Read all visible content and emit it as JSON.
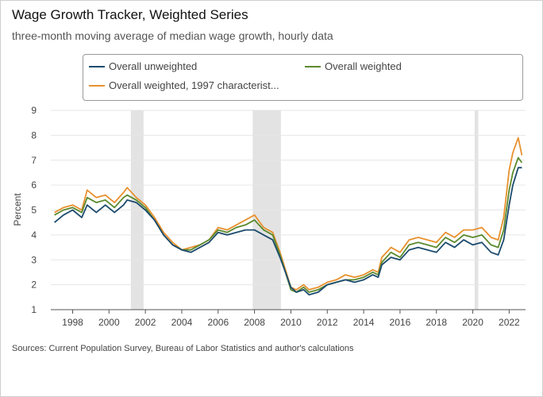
{
  "chart_data": {
    "type": "line",
    "title": "Wage Growth Tracker, Weighted Series",
    "subtitle": "three-month moving average of median wage growth, hourly data",
    "xlabel": "",
    "ylabel": "Percent",
    "xlim": [
      1996.8,
      2022.9
    ],
    "ylim": [
      1,
      9
    ],
    "y_ticks": [
      "1",
      "2",
      "3",
      "4",
      "5",
      "6",
      "7",
      "8",
      "9"
    ],
    "x_ticks": [
      "1998",
      "2000",
      "2002",
      "2004",
      "2006",
      "2008",
      "2010",
      "2012",
      "2014",
      "2016",
      "2018",
      "2020",
      "2022"
    ],
    "recessions": [
      [
        2001.2,
        2001.9
      ],
      [
        2007.9,
        2009.45
      ],
      [
        2020.1,
        2020.3
      ]
    ],
    "series": [
      {
        "name": "Overall unweighted",
        "color": "#1c4b6e",
        "points": [
          [
            1997.0,
            4.5
          ],
          [
            1997.5,
            4.8
          ],
          [
            1998.0,
            5.0
          ],
          [
            1998.5,
            4.7
          ],
          [
            1998.8,
            5.2
          ],
          [
            1999.3,
            4.9
          ],
          [
            1999.8,
            5.2
          ],
          [
            2000.3,
            4.9
          ],
          [
            2000.8,
            5.2
          ],
          [
            2001.0,
            5.4
          ],
          [
            2001.5,
            5.3
          ],
          [
            2002.0,
            5.0
          ],
          [
            2002.5,
            4.6
          ],
          [
            2003.0,
            4.0
          ],
          [
            2003.5,
            3.6
          ],
          [
            2004.0,
            3.4
          ],
          [
            2004.5,
            3.3
          ],
          [
            2005.0,
            3.5
          ],
          [
            2005.5,
            3.7
          ],
          [
            2006.0,
            4.1
          ],
          [
            2006.5,
            4.0
          ],
          [
            2007.0,
            4.1
          ],
          [
            2007.5,
            4.2
          ],
          [
            2008.0,
            4.2
          ],
          [
            2008.5,
            4.0
          ],
          [
            2009.0,
            3.8
          ],
          [
            2009.4,
            3.1
          ],
          [
            2009.7,
            2.5
          ],
          [
            2010.0,
            1.9
          ],
          [
            2010.3,
            1.7
          ],
          [
            2010.7,
            1.8
          ],
          [
            2011.0,
            1.6
          ],
          [
            2011.5,
            1.7
          ],
          [
            2012.0,
            2.0
          ],
          [
            2012.5,
            2.1
          ],
          [
            2013.0,
            2.2
          ],
          [
            2013.5,
            2.1
          ],
          [
            2014.0,
            2.2
          ],
          [
            2014.5,
            2.4
          ],
          [
            2014.8,
            2.3
          ],
          [
            2015.0,
            2.8
          ],
          [
            2015.5,
            3.1
          ],
          [
            2016.0,
            3.0
          ],
          [
            2016.5,
            3.4
          ],
          [
            2017.0,
            3.5
          ],
          [
            2017.5,
            3.4
          ],
          [
            2018.0,
            3.3
          ],
          [
            2018.5,
            3.7
          ],
          [
            2019.0,
            3.5
          ],
          [
            2019.5,
            3.8
          ],
          [
            2020.0,
            3.6
          ],
          [
            2020.5,
            3.7
          ],
          [
            2021.0,
            3.3
          ],
          [
            2021.4,
            3.2
          ],
          [
            2021.7,
            3.8
          ],
          [
            2022.0,
            5.2
          ],
          [
            2022.2,
            6.0
          ],
          [
            2022.5,
            6.7
          ],
          [
            2022.7,
            6.7
          ]
        ]
      },
      {
        "name": "Overall weighted",
        "color": "#5c8a2e",
        "points": [
          [
            1997.0,
            4.8
          ],
          [
            1997.5,
            5.0
          ],
          [
            1998.0,
            5.1
          ],
          [
            1998.5,
            4.9
          ],
          [
            1998.8,
            5.5
          ],
          [
            1999.3,
            5.3
          ],
          [
            1999.8,
            5.4
          ],
          [
            2000.3,
            5.1
          ],
          [
            2000.8,
            5.5
          ],
          [
            2001.0,
            5.6
          ],
          [
            2001.5,
            5.4
          ],
          [
            2002.0,
            5.1
          ],
          [
            2002.5,
            4.6
          ],
          [
            2003.0,
            4.0
          ],
          [
            2003.5,
            3.6
          ],
          [
            2004.0,
            3.4
          ],
          [
            2004.5,
            3.4
          ],
          [
            2005.0,
            3.6
          ],
          [
            2005.5,
            3.8
          ],
          [
            2006.0,
            4.2
          ],
          [
            2006.5,
            4.1
          ],
          [
            2007.0,
            4.3
          ],
          [
            2007.5,
            4.4
          ],
          [
            2008.0,
            4.6
          ],
          [
            2008.5,
            4.2
          ],
          [
            2009.0,
            4.0
          ],
          [
            2009.4,
            3.2
          ],
          [
            2009.7,
            2.5
          ],
          [
            2010.0,
            1.8
          ],
          [
            2010.3,
            1.7
          ],
          [
            2010.7,
            1.9
          ],
          [
            2011.0,
            1.7
          ],
          [
            2011.5,
            1.8
          ],
          [
            2012.0,
            2.0
          ],
          [
            2012.5,
            2.1
          ],
          [
            2013.0,
            2.2
          ],
          [
            2013.5,
            2.2
          ],
          [
            2014.0,
            2.3
          ],
          [
            2014.5,
            2.5
          ],
          [
            2014.8,
            2.4
          ],
          [
            2015.0,
            2.9
          ],
          [
            2015.5,
            3.3
          ],
          [
            2016.0,
            3.1
          ],
          [
            2016.5,
            3.6
          ],
          [
            2017.0,
            3.7
          ],
          [
            2017.5,
            3.6
          ],
          [
            2018.0,
            3.5
          ],
          [
            2018.5,
            3.9
          ],
          [
            2019.0,
            3.7
          ],
          [
            2019.5,
            4.0
          ],
          [
            2020.0,
            3.9
          ],
          [
            2020.5,
            4.0
          ],
          [
            2021.0,
            3.6
          ],
          [
            2021.4,
            3.5
          ],
          [
            2021.7,
            4.2
          ],
          [
            2022.0,
            5.8
          ],
          [
            2022.2,
            6.5
          ],
          [
            2022.5,
            7.1
          ],
          [
            2022.7,
            6.9
          ]
        ]
      },
      {
        "name": "Overall weighted, 1997 characterist...",
        "color": "#e8912e",
        "points": [
          [
            1997.0,
            4.9
          ],
          [
            1997.5,
            5.1
          ],
          [
            1998.0,
            5.2
          ],
          [
            1998.5,
            5.0
          ],
          [
            1998.8,
            5.8
          ],
          [
            1999.3,
            5.5
          ],
          [
            1999.8,
            5.6
          ],
          [
            2000.3,
            5.3
          ],
          [
            2000.8,
            5.7
          ],
          [
            2001.0,
            5.9
          ],
          [
            2001.5,
            5.5
          ],
          [
            2002.0,
            5.2
          ],
          [
            2002.5,
            4.7
          ],
          [
            2003.0,
            4.1
          ],
          [
            2003.5,
            3.7
          ],
          [
            2004.0,
            3.4
          ],
          [
            2004.5,
            3.5
          ],
          [
            2005.0,
            3.6
          ],
          [
            2005.5,
            3.8
          ],
          [
            2006.0,
            4.3
          ],
          [
            2006.5,
            4.2
          ],
          [
            2007.0,
            4.4
          ],
          [
            2007.5,
            4.6
          ],
          [
            2008.0,
            4.8
          ],
          [
            2008.5,
            4.3
          ],
          [
            2009.0,
            4.1
          ],
          [
            2009.4,
            3.3
          ],
          [
            2009.7,
            2.6
          ],
          [
            2010.0,
            1.9
          ],
          [
            2010.3,
            1.8
          ],
          [
            2010.7,
            2.0
          ],
          [
            2011.0,
            1.8
          ],
          [
            2011.5,
            1.9
          ],
          [
            2012.0,
            2.1
          ],
          [
            2012.5,
            2.2
          ],
          [
            2013.0,
            2.4
          ],
          [
            2013.5,
            2.3
          ],
          [
            2014.0,
            2.4
          ],
          [
            2014.5,
            2.6
          ],
          [
            2014.8,
            2.5
          ],
          [
            2015.0,
            3.1
          ],
          [
            2015.5,
            3.5
          ],
          [
            2016.0,
            3.3
          ],
          [
            2016.5,
            3.8
          ],
          [
            2017.0,
            3.9
          ],
          [
            2017.5,
            3.8
          ],
          [
            2018.0,
            3.7
          ],
          [
            2018.5,
            4.1
          ],
          [
            2019.0,
            3.9
          ],
          [
            2019.5,
            4.2
          ],
          [
            2020.0,
            4.2
          ],
          [
            2020.5,
            4.3
          ],
          [
            2021.0,
            3.9
          ],
          [
            2021.4,
            3.8
          ],
          [
            2021.7,
            4.7
          ],
          [
            2022.0,
            6.6
          ],
          [
            2022.2,
            7.3
          ],
          [
            2022.5,
            7.9
          ],
          [
            2022.7,
            7.2
          ]
        ]
      }
    ],
    "legend_position": "top"
  },
  "source": "Sources: Current Population Survey, Bureau of Labor Statistics and author's calculations"
}
